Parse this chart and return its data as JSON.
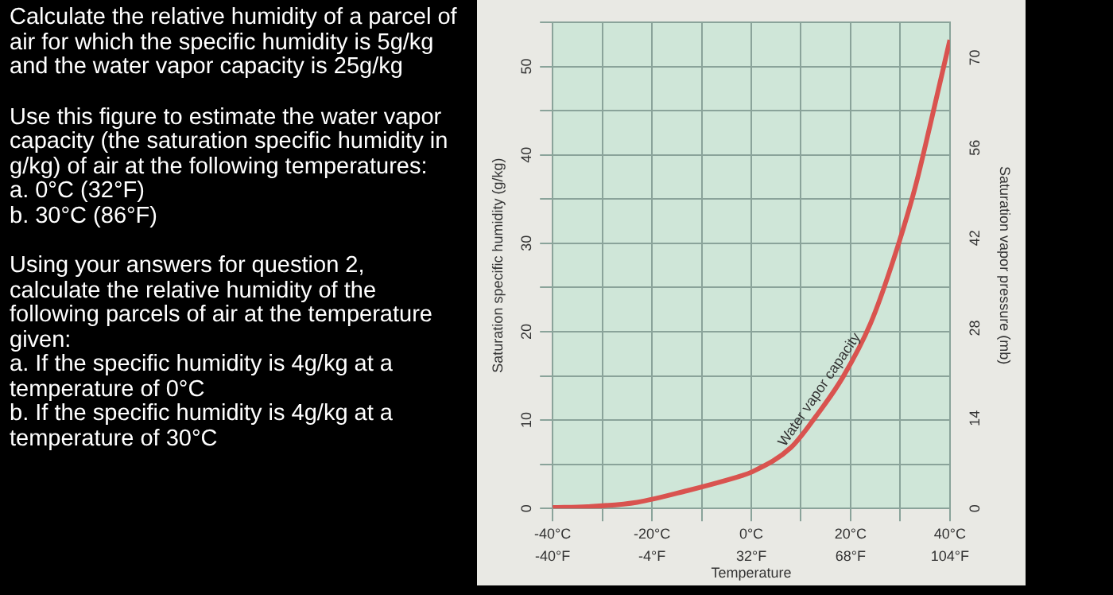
{
  "chart_data": {
    "type": "line",
    "xlabel": "Temperature",
    "ylabel": "Saturation specific humidity (g/kg)",
    "y2label": "Saturation vapor pressure (mb)",
    "x": [
      -40,
      -33,
      -23,
      -13,
      -2,
      0,
      8,
      13,
      18.5,
      24,
      28.5,
      33,
      36,
      40
    ],
    "series": [
      {
        "name": "Water vapor capacity",
        "color": "#d9534f",
        "values": [
          0.1,
          0.2,
          0.7,
          2,
          3.7,
          4.1,
          6.9,
          10.4,
          14.9,
          20.9,
          27.9,
          36.3,
          43.3,
          53
        ]
      }
    ],
    "xlim": [
      -40,
      40
    ],
    "xticks": [
      {
        "value": -40,
        "label": "-40°C"
      },
      {
        "value": -30,
        "label": null
      },
      {
        "value": -20,
        "label": "-20°C"
      },
      {
        "value": -10,
        "label": null
      },
      {
        "value": 0,
        "label": "0°C"
      },
      {
        "value": 10,
        "label": null
      },
      {
        "value": 20,
        "label": "20°C"
      },
      {
        "value": 30,
        "label": null
      },
      {
        "value": 40,
        "label": "40°C"
      }
    ],
    "x2lim": [
      -40,
      104
    ],
    "x2ticks": [
      {
        "value": -40,
        "label": "-40°F"
      },
      {
        "value": -4,
        "label": "-4°F"
      },
      {
        "value": 32,
        "label": "32°F"
      },
      {
        "value": 68,
        "label": "68°F"
      },
      {
        "value": 104,
        "label": "104°F"
      }
    ],
    "ylim": [
      0,
      55
    ],
    "yticks": [
      0,
      {
        "value": 5,
        "label": null
      },
      10,
      {
        "value": 15,
        "label": null
      },
      20,
      {
        "value": 25,
        "label": null
      },
      30,
      {
        "value": 35,
        "label": null
      },
      40,
      {
        "value": 45,
        "label": null
      },
      50,
      {
        "value": 55,
        "label": null
      }
    ],
    "y2lim": [
      0,
      75.5
    ],
    "y2ticks": [
      0,
      14,
      28,
      42,
      56,
      70
    ],
    "grid": true,
    "legend": false,
    "marker": "none",
    "line_style": "solid",
    "annotations": [
      "Calculate the relative humidity of a parcel of air for which the specific humidity is 5g/kg and the water vapor capacity is 25g/kg",
      "Use this figure to estimate the water vapor capacity (the saturation specific humidity in g/kg) of air at the following temperatures:",
      "a. 0°C (32°F)",
      "b. 30°C (86°F)",
      "Using your answers for question 2, calculate the relative humidity of the following parcels of air at the temperature given:",
      "a. If the specific humidity is 4g/kg at a temperature of 0°C",
      "b. If the specific humidity is 4g/kg at a temperature of 30°C"
    ]
  }
}
